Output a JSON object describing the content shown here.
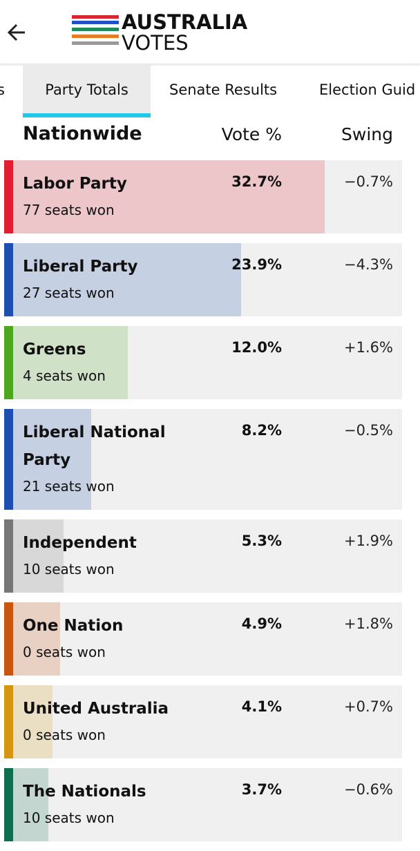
{
  "header": {
    "title_line1": "AUSTRALIA",
    "title_line2": "VOTES"
  },
  "tabs": [
    "s",
    "Party Totals",
    "Senate Results",
    "Election Guid"
  ],
  "table": {
    "heading": "Nationwide",
    "vote_heading": "Vote %",
    "swing_heading": "Swing",
    "parties": [
      {
        "name": "Labor Party",
        "seats": "77 seats won",
        "vote": 32.7,
        "vote_label": "32.7%",
        "swing": "−0.7%",
        "color": "#e11f30"
      },
      {
        "name": "Liberal Party",
        "seats": "27 seats won",
        "vote": 23.9,
        "vote_label": "23.9%",
        "swing": "−4.3%",
        "color": "#1c4fb0"
      },
      {
        "name": "Greens",
        "seats": "4 seats won",
        "vote": 12.0,
        "vote_label": "12.0%",
        "swing": "+1.6%",
        "color": "#4aa71e"
      },
      {
        "name": "Liberal National Party",
        "seats": "21 seats won",
        "vote": 8.2,
        "vote_label": "8.2%",
        "swing": "−0.5%",
        "color": "#1c4fb0"
      },
      {
        "name": "Independent",
        "seats": "10 seats won",
        "vote": 5.3,
        "vote_label": "5.3%",
        "swing": "+1.9%",
        "color": "#777777"
      },
      {
        "name": "One Nation",
        "seats": "0 seats won",
        "vote": 4.9,
        "vote_label": "4.9%",
        "swing": "+1.8%",
        "color": "#c9550f"
      },
      {
        "name": "United Australia",
        "seats": "0 seats won",
        "vote": 4.1,
        "vote_label": "4.1%",
        "swing": "+0.7%",
        "color": "#d4960e"
      },
      {
        "name": "The Nationals",
        "seats": "10 seats won",
        "vote": 3.7,
        "vote_label": "3.7%",
        "swing": "−0.6%",
        "color": "#0f6e50"
      }
    ]
  }
}
